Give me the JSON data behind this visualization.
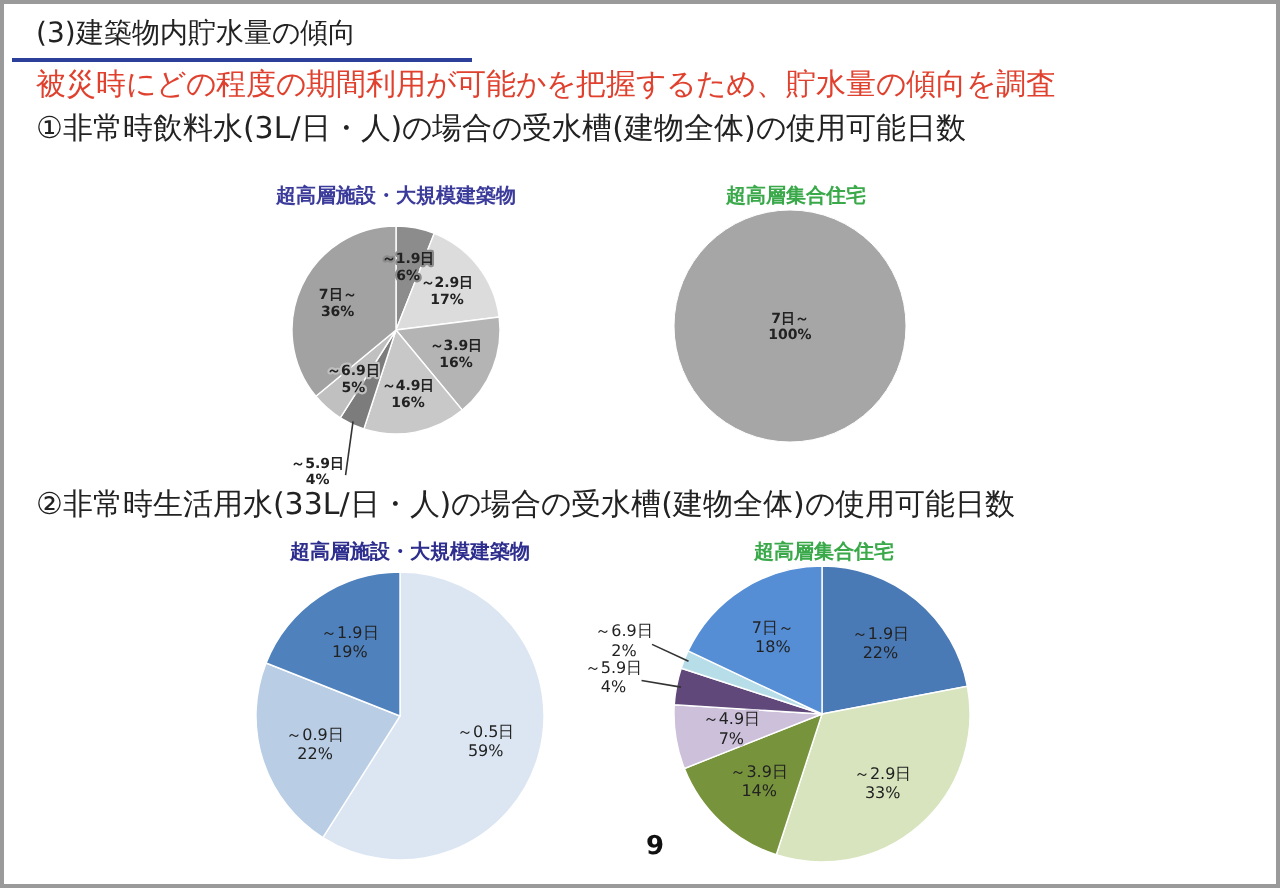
{
  "chart_data": [
    {
      "type": "pie",
      "title": "超高層施設・大規模建築物",
      "annotations": [
        "(3)建築物内貯水量の傾向",
        "被災時にどの程度の期間利用が可能かを把握するため、貯水量の傾向を調査",
        "①非常時飲料水(3L/日・人)の場合の受水槽(建物全体)の使用可能日数"
      ],
      "categories": [
        "～1.9日",
        "～2.9日",
        "～3.9日",
        "～4.9日",
        "～5.9日",
        "～6.9日",
        "7日～"
      ],
      "values": [
        6,
        17,
        16,
        16,
        4,
        5,
        36
      ],
      "value_labels": [
        "6%",
        "17%",
        "16%",
        "16%",
        "4%",
        "5%",
        "36%"
      ],
      "colors": [
        "#8c8c8c",
        "#dcdcdc",
        "#b4b4b4",
        "#c8c8c8",
        "#7c7c7c",
        "#c0c0c0",
        "#a2a2a2"
      ]
    },
    {
      "type": "pie",
      "title": "超高層集合住宅",
      "categories": [
        "7日～"
      ],
      "values": [
        100
      ],
      "value_labels": [
        "100%"
      ],
      "colors": [
        "#a6a6a6"
      ]
    },
    {
      "type": "pie",
      "title": "超高層施設・大規模建築物",
      "annotations": [
        "②非常時生活用水(33L/日・人)の場合の受水槽(建物全体)の使用可能日数"
      ],
      "categories": [
        "～0.5日",
        "～0.9日",
        "～1.9日"
      ],
      "values": [
        59,
        22,
        19
      ],
      "value_labels": [
        "59%",
        "22%",
        "19%"
      ],
      "colors": [
        "#dce6f2",
        "#b9cde5",
        "#4f81bd"
      ]
    },
    {
      "type": "pie",
      "title": "超高層集合住宅",
      "annotations": [
        "9"
      ],
      "categories": [
        "～1.9日",
        "～2.9日",
        "～3.9日",
        "～4.9日",
        "～5.9日",
        "～6.9日",
        "7日～"
      ],
      "values": [
        22,
        33,
        14,
        7,
        4,
        2,
        18
      ],
      "value_labels": [
        "22%",
        "33%",
        "14%",
        "7%",
        "4%",
        "2%",
        "18%"
      ],
      "colors": [
        "#4a7ab5",
        "#d7e4bd",
        "#77933c",
        "#ccc0da",
        "#60497a",
        "#b7dee8",
        "#558ed5"
      ]
    }
  ]
}
